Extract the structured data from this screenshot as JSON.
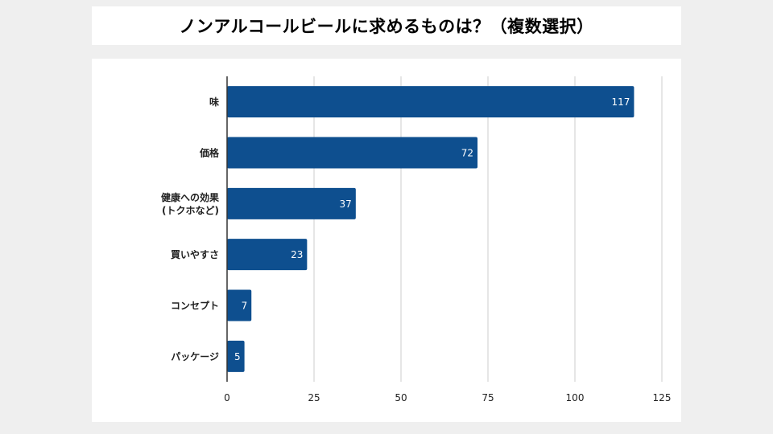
{
  "chart_data": {
    "type": "bar",
    "orientation": "horizontal",
    "title": "ノンアルコールビールに求めるものは？（複数選択）",
    "categories": [
      "味",
      "価格",
      "健康への効果\n(トクホなど)",
      "買いやすさ",
      "コンセプト",
      "パッケージ"
    ],
    "values": [
      117,
      72,
      37,
      23,
      7,
      5
    ],
    "data_labels": [
      "117",
      "72",
      "37",
      "23",
      "7",
      "5"
    ],
    "xlim": [
      0,
      125
    ],
    "xticks": [
      0,
      25,
      50,
      75,
      100,
      125
    ],
    "xlabel": "",
    "ylabel": "",
    "grid": true,
    "legend": "none",
    "bar_color": "#0e4f8f",
    "grid_color": "#cccccc",
    "axis_color": "#333333"
  }
}
